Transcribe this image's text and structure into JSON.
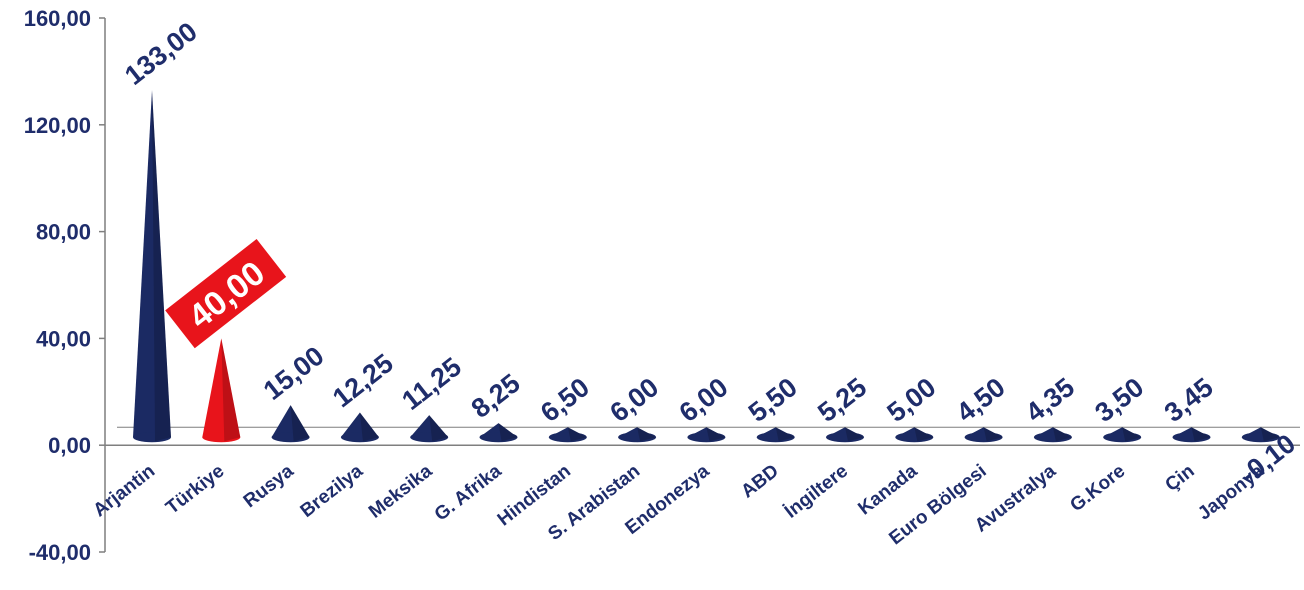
{
  "chart_data": {
    "type": "bar",
    "bar_shape": "cone",
    "categories": [
      "Arjantin",
      "Türkiye",
      "Rusya",
      "Brezilya",
      "Meksika",
      "G. Afrika",
      "Hindistan",
      "S. Arabistan",
      "Endonezya",
      "ABD",
      "İngiltere",
      "Kanada",
      "Euro Bölgesi",
      "Avustralya",
      "G.Kore",
      "Çin",
      "Japonya"
    ],
    "values": [
      133.0,
      40.0,
      15.0,
      12.25,
      11.25,
      8.25,
      6.5,
      6.0,
      6.0,
      5.5,
      5.25,
      5.0,
      4.5,
      4.35,
      3.5,
      3.45,
      -0.1
    ],
    "value_labels": [
      "133,00",
      "40,00",
      "15,00",
      "12,25",
      "11,25",
      "8,25",
      "6,50",
      "6,00",
      "6,00",
      "5,50",
      "5,25",
      "5,00",
      "4,50",
      "4,35",
      "3,50",
      "3,45",
      "-0,10"
    ],
    "highlight_category": "Türkiye",
    "ylim": [
      -40,
      160
    ],
    "yticks": [
      -40,
      0,
      40,
      80,
      120,
      160
    ],
    "ytick_labels": [
      "-40,00",
      "0,00",
      "40,00",
      "80,00",
      "120,00",
      "160,00"
    ],
    "title": "",
    "xlabel": "",
    "ylabel": "",
    "grid": false,
    "colors": {
      "bar": "#1b2a63",
      "highlight": "#e8141b",
      "text": "#1f2d6b",
      "axis": "#7f7f7f"
    }
  }
}
